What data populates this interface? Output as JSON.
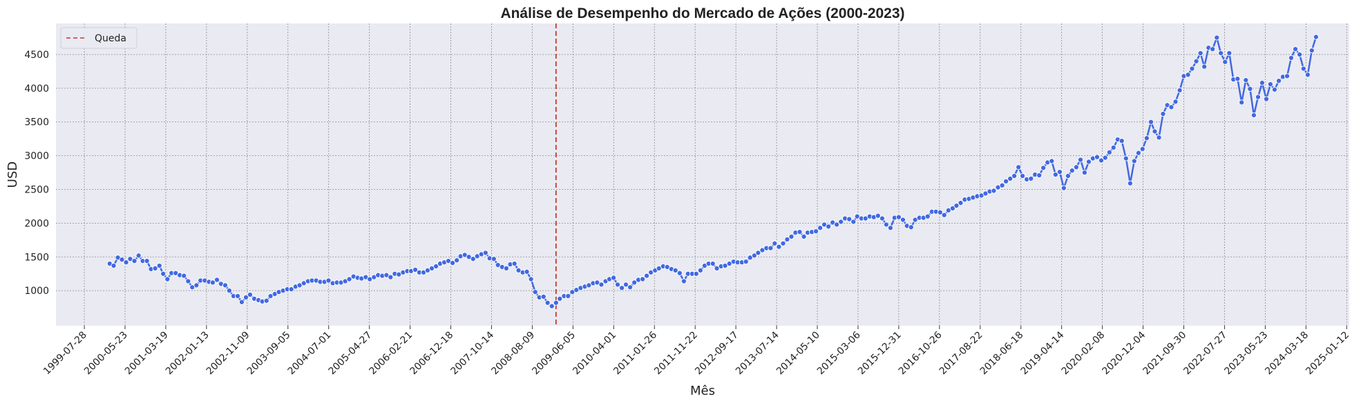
{
  "chart_data": {
    "type": "line",
    "title": "Análise de Desempenho do Mercado de Ações (2000-2023)",
    "xlabel": "Mês",
    "ylabel": "USD",
    "x_range": [
      "1998-12-31",
      "2025-01-31"
    ],
    "ylim": [
      480,
      4960
    ],
    "x_ticks": [
      "1999-07-28",
      "2000-05-23",
      "2001-03-19",
      "2002-01-13",
      "2002-11-09",
      "2003-09-05",
      "2004-07-01",
      "2005-04-27",
      "2006-02-21",
      "2006-12-18",
      "2007-10-14",
      "2008-08-09",
      "2009-06-05",
      "2010-04-01",
      "2011-01-26",
      "2011-11-22",
      "2012-09-17",
      "2013-07-14",
      "2014-05-10",
      "2015-03-06",
      "2015-12-31",
      "2016-10-26",
      "2017-08-22",
      "2018-06-18",
      "2019-04-14",
      "2020-02-08",
      "2020-12-04",
      "2021-09-30",
      "2022-07-27",
      "2023-05-23",
      "2024-03-18",
      "2025-01-12"
    ],
    "y_ticks": [
      1000,
      1500,
      2000,
      2500,
      3000,
      3500,
      4000,
      4500
    ],
    "grid": true,
    "legend": {
      "position": "top-left",
      "entries": [
        {
          "label": "Queda",
          "color": "#c0392b",
          "style": "dashed"
        }
      ]
    },
    "annotations": [
      {
        "type": "vline",
        "x": "2009-01-31",
        "label": "Queda"
      }
    ],
    "series": [
      {
        "x_start": "2000-01-31",
        "frequency": "monthly",
        "color": "#4169e1",
        "values": [
          1400,
          1370,
          1490,
          1460,
          1420,
          1470,
          1440,
          1520,
          1440,
          1440,
          1320,
          1330,
          1370,
          1250,
          1170,
          1260,
          1260,
          1230,
          1220,
          1140,
          1050,
          1080,
          1150,
          1150,
          1130,
          1120,
          1160,
          1100,
          1080,
          1000,
          920,
          920,
          830,
          900,
          940,
          880,
          860,
          840,
          850,
          920,
          950,
          980,
          1000,
          1020,
          1020,
          1060,
          1080,
          1110,
          1140,
          1150,
          1150,
          1130,
          1130,
          1150,
          1110,
          1120,
          1120,
          1140,
          1170,
          1210,
          1190,
          1180,
          1200,
          1170,
          1200,
          1230,
          1220,
          1230,
          1200,
          1250,
          1240,
          1270,
          1290,
          1290,
          1310,
          1270,
          1270,
          1300,
          1330,
          1360,
          1400,
          1420,
          1440,
          1410,
          1450,
          1510,
          1530,
          1500,
          1470,
          1510,
          1540,
          1560,
          1480,
          1470,
          1380,
          1350,
          1330,
          1390,
          1400,
          1300,
          1270,
          1280,
          1170,
          980,
          900,
          910,
          820,
          770,
          820,
          880,
          920,
          920,
          980,
          1010,
          1040,
          1060,
          1080,
          1110,
          1120,
          1090,
          1140,
          1170,
          1190,
          1090,
          1040,
          1090,
          1050,
          1120,
          1160,
          1170,
          1220,
          1270,
          1300,
          1330,
          1360,
          1350,
          1320,
          1300,
          1260,
          1140,
          1250,
          1250,
          1250,
          1300,
          1370,
          1400,
          1400,
          1330,
          1360,
          1370,
          1400,
          1430,
          1420,
          1420,
          1430,
          1490,
          1520,
          1560,
          1600,
          1630,
          1630,
          1700,
          1650,
          1700,
          1760,
          1800,
          1860,
          1870,
          1800,
          1860,
          1870,
          1880,
          1930,
          1980,
          1950,
          2010,
          1980,
          2020,
          2070,
          2060,
          2020,
          2100,
          2070,
          2070,
          2100,
          2090,
          2110,
          2070,
          1980,
          1930,
          2080,
          2090,
          2050,
          1960,
          1940,
          2050,
          2080,
          2080,
          2100,
          2170,
          2170,
          2160,
          2120,
          2190,
          2220,
          2260,
          2300,
          2350,
          2360,
          2380,
          2400,
          2410,
          2440,
          2470,
          2480,
          2530,
          2560,
          2620,
          2660,
          2700,
          2830,
          2700,
          2650,
          2660,
          2720,
          2710,
          2820,
          2900,
          2920,
          2720,
          2760,
          2520,
          2700,
          2780,
          2830,
          2940,
          2750,
          2910,
          2960,
          2980,
          2930,
          2970,
          3050,
          3120,
          3240,
          3220,
          2960,
          2590,
          2920,
          3040,
          3100,
          3260,
          3500,
          3360,
          3270,
          3620,
          3750,
          3720,
          3800,
          3970,
          4180,
          4200,
          4290,
          4400,
          4520,
          4320,
          4600,
          4580,
          4750,
          4520,
          4390,
          4520,
          4130,
          4140,
          3790,
          4120,
          3990,
          3600,
          3870,
          4080,
          3840,
          4060,
          3980,
          4110,
          4170,
          4180,
          4450,
          4580,
          4500,
          4290,
          4200,
          4560,
          4760
        ]
      }
    ]
  }
}
